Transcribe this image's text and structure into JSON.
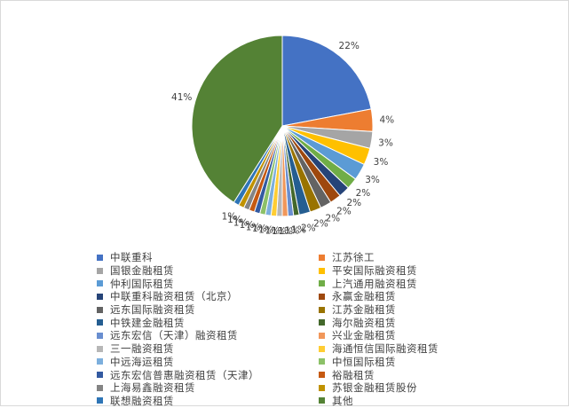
{
  "chart_data": {
    "type": "pie",
    "title": "",
    "legend_position": "bottom",
    "series": [
      {
        "name": "中联重科",
        "value": 22,
        "label": "22%",
        "color": "#4472C4"
      },
      {
        "name": "江苏徐工",
        "value": 4,
        "label": "4%",
        "color": "#ED7D31"
      },
      {
        "name": "国银金融租赁",
        "value": 3,
        "label": "3%",
        "color": "#A5A5A5"
      },
      {
        "name": "平安国际融资租赁",
        "value": 3,
        "label": "3%",
        "color": "#FFC000"
      },
      {
        "name": "仲利国际租赁",
        "value": 3,
        "label": "3%",
        "color": "#5B9BD5"
      },
      {
        "name": "上汽通用融资租赁",
        "value": 2,
        "label": "2%",
        "color": "#70AD47"
      },
      {
        "name": "中联重科融资租赁（北京）",
        "value": 2,
        "label": "2%",
        "color": "#264478"
      },
      {
        "name": "永赢金融租赁",
        "value": 2,
        "label": "2%",
        "color": "#9E480E"
      },
      {
        "name": "远东国际融资租赁",
        "value": 2,
        "label": "2%",
        "color": "#636363"
      },
      {
        "name": "江苏金融租赁",
        "value": 2,
        "label": "2%",
        "color": "#997300"
      },
      {
        "name": "中铁建金融租赁",
        "value": 2,
        "label": "2%",
        "color": "#255E91"
      },
      {
        "name": "海尔融资租赁",
        "value": 1,
        "label": "1%",
        "color": "#43682B"
      },
      {
        "name": "远东宏信（天津）融资租赁",
        "value": 1,
        "label": "1%",
        "color": "#698ED0"
      },
      {
        "name": "兴业金融租赁",
        "value": 1,
        "label": "1%",
        "color": "#F1975A"
      },
      {
        "name": "三一融资租赁",
        "value": 1,
        "label": "1%",
        "color": "#B7B7B7"
      },
      {
        "name": "海通恒信国际融资租赁",
        "value": 1,
        "label": "1%",
        "color": "#FFCD33"
      },
      {
        "name": "中远海运租赁",
        "value": 1,
        "label": "1%",
        "color": "#7CAFDD"
      },
      {
        "name": "中恒国际租赁",
        "value": 1,
        "label": "1%",
        "color": "#8CC168"
      },
      {
        "name": "远东宏信普惠融资租赁（天津）",
        "value": 1,
        "label": "1%",
        "color": "#335AA1"
      },
      {
        "name": "裕融租赁",
        "value": 1,
        "label": "1%",
        "color": "#C65911"
      },
      {
        "name": "上海易鑫融资租赁",
        "value": 1,
        "label": "1%",
        "color": "#848484"
      },
      {
        "name": "苏银金融租赁股份",
        "value": 1,
        "label": "1%",
        "color": "#C09200"
      },
      {
        "name": "联想融资租赁",
        "value": 1,
        "label": "1%",
        "color": "#2E75B6"
      },
      {
        "name": "其他",
        "value": 41,
        "label": "41%",
        "color": "#548235"
      }
    ]
  }
}
